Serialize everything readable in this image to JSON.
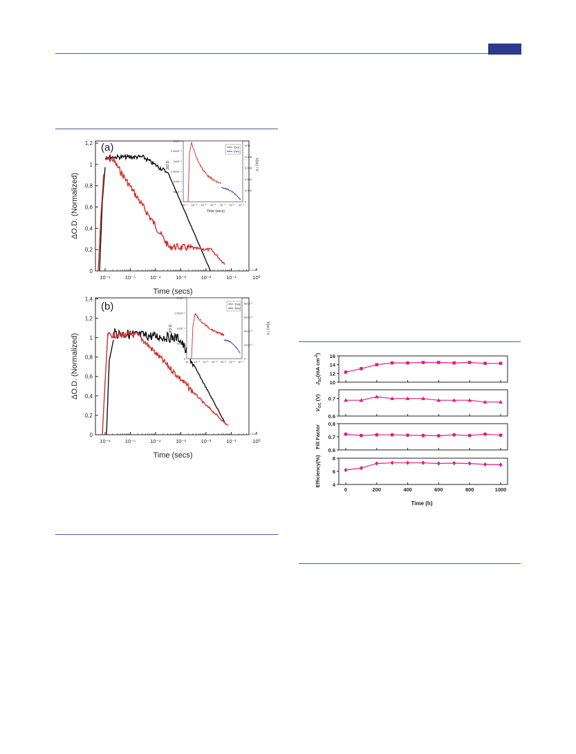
{
  "page": {
    "header_tab_color": "#2b3a8f",
    "rule_color": "#4d5aa8"
  },
  "figure1": {
    "panels": [
      {
        "id": "a",
        "label": "(a)",
        "ylabel": "ΔO.D. (Normalized)",
        "xlabel": "Time (secs)",
        "yticks": [
          "0",
          "0,2",
          "0,4",
          "0,6",
          "0,8",
          "1",
          "1,2"
        ],
        "xticks": [
          "10⁻⁶",
          "10⁻⁵",
          "10⁻⁴",
          "10⁻³",
          "10⁻²",
          "10⁻¹",
          "10⁰"
        ],
        "inset": {
          "ylabel": "ΔO.D.",
          "y2label": "V(oc) / V",
          "xlabel": "Time (secs)",
          "yticks": [
            "0",
            "5x10⁻⁵",
            "1x10⁻⁴",
            "1.5x10⁻⁴",
            "2x10⁻⁴",
            "2.5x10⁻⁴",
            "3x10⁻⁴"
          ],
          "y2ticks": [
            "0",
            "0.002",
            "0.004",
            "0.006",
            "0.008",
            "0.01"
          ],
          "xticks": [
            "10⁻⁷",
            "10⁻⁶",
            "10⁻⁵",
            "10⁻⁴",
            "10⁻³",
            "10⁻²",
            "10⁻¹"
          ],
          "legend": [
            "TAS",
            "TPV"
          ]
        }
      },
      {
        "id": "b",
        "label": "(b)",
        "ylabel": "ΔO.D. (Normalized)",
        "xlabel": "Time (secs)",
        "yticks": [
          "0",
          "0,2",
          "0,4",
          "0,6",
          "0,8",
          "1",
          "1,2",
          "1,4"
        ],
        "xticks": [
          "10⁻⁶",
          "10⁻⁵",
          "10⁻⁴",
          "10⁻³",
          "10⁻²",
          "10⁻¹",
          "10⁰"
        ],
        "inset": {
          "ylabel": "ΔO.D.",
          "y2label": "V(oc) / V",
          "xlabel": "Time (secs)",
          "yticks": [
            "0",
            "5x10⁻⁵",
            "1x10⁻⁴",
            "1.5x10⁻⁴",
            "2x10⁻⁴"
          ],
          "y2ticks": [
            "0",
            "2x10⁻³",
            "4x10⁻³",
            "6x10⁻³",
            "8x10⁻³"
          ],
          "xticks": [
            "10⁻⁷",
            "10⁻⁶",
            "10⁻⁵",
            "10⁻⁴",
            "10⁻³",
            "10⁻²",
            "10⁻¹"
          ],
          "legend": [
            "TAS",
            "TPV"
          ]
        }
      }
    ],
    "colors": {
      "TAS": "#d42a2a",
      "TPV": "#2a3a9c",
      "black": "#111111"
    }
  },
  "chart_data": [
    {
      "type": "scatter",
      "xlabel": "Time (h)",
      "xticks": [
        "0",
        "200",
        "400",
        "600",
        "800",
        "1000"
      ],
      "xlim": [
        0,
        1000
      ],
      "color": "#e0207a",
      "x": [
        0,
        100,
        200,
        300,
        400,
        500,
        600,
        700,
        800,
        900,
        1000
      ],
      "panels": [
        {
          "ylabel": "J_sc(mA cm⁻²)",
          "ylabel_main": "J",
          "ylabel_sub": "SC",
          "ylabel_rest": "(mA cm",
          "ylabel_sup": "-2",
          "ylabel_end": ")",
          "marker": "square",
          "ylim": [
            10,
            16
          ],
          "yticks": [
            "10",
            "12",
            "14",
            "16"
          ],
          "values": [
            12.3,
            13.1,
            14.0,
            14.4,
            14.4,
            14.5,
            14.5,
            14.4,
            14.5,
            14.3,
            14.3
          ]
        },
        {
          "ylabel": "V_OC (V)",
          "ylabel_main": "V",
          "ylabel_sub": "OC",
          "ylabel_rest": " (V)",
          "marker": "triangle",
          "ylim": [
            0.6,
            0.75
          ],
          "yticks": [
            "0.6",
            "0.7"
          ],
          "values": [
            0.69,
            0.69,
            0.71,
            0.7,
            0.7,
            0.7,
            0.69,
            0.69,
            0.69,
            0.68,
            0.68
          ]
        },
        {
          "ylabel": "Fill Factor",
          "marker": "circle",
          "ylim": [
            0.6,
            0.8
          ],
          "yticks": [
            "0.6",
            "0.7",
            "0.8"
          ],
          "values": [
            0.72,
            0.71,
            0.715,
            0.715,
            0.712,
            0.71,
            0.708,
            0.715,
            0.71,
            0.72,
            0.712
          ]
        },
        {
          "ylabel": "Efficiency(%)",
          "marker": "diamond",
          "ylim": [
            4,
            8
          ],
          "yticks": [
            "4",
            "6",
            "8"
          ],
          "values": [
            6.2,
            6.5,
            7.2,
            7.3,
            7.3,
            7.3,
            7.2,
            7.25,
            7.2,
            7.05,
            7.0
          ]
        }
      ]
    }
  ]
}
